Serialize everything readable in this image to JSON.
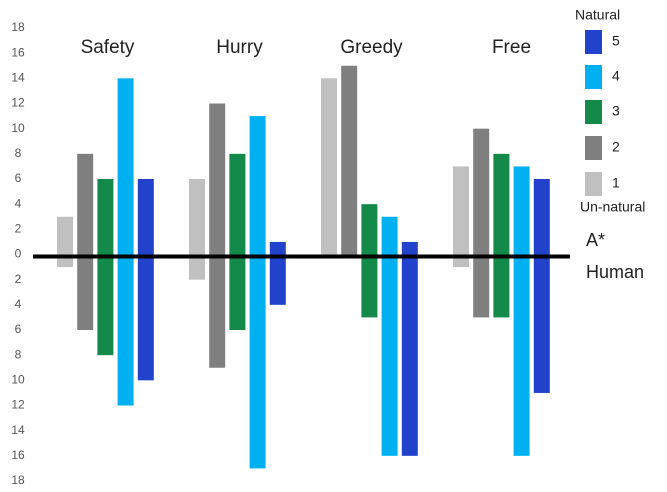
{
  "chart_data": {
    "type": "bar",
    "categories": [
      "Safety",
      "Hurry",
      "Greedy",
      "Free"
    ],
    "upper_label": "A*",
    "lower_label": "Human",
    "legend_top": "Natural",
    "legend_bottom": "Un-natural",
    "ylim": [
      -18,
      18
    ],
    "yticks": [
      18,
      16,
      14,
      12,
      10,
      8,
      6,
      4,
      2,
      0,
      {
        "value": -2,
        "label": "2"
      },
      {
        "value": -4,
        "label": "4"
      },
      {
        "value": -6,
        "label": "6"
      },
      {
        "value": -8,
        "label": "8"
      },
      {
        "value": -10,
        "label": "10"
      },
      {
        "value": -12,
        "label": "12"
      },
      {
        "value": -14,
        "label": "14"
      },
      {
        "value": -16,
        "label": "16"
      },
      {
        "value": -18,
        "label": "18"
      }
    ],
    "grid": false,
    "series": [
      {
        "name": "1",
        "color": "#c0c0c0",
        "values": [
          3,
          6,
          14,
          7
        ],
        "lower_values": [
          -1,
          -2,
          0,
          -1
        ]
      },
      {
        "name": "2",
        "color": "#7f7f7f",
        "values": [
          8,
          12,
          15,
          10
        ],
        "lower_values": [
          -6,
          -9,
          0,
          -5
        ]
      },
      {
        "name": "3",
        "color": "#13894a",
        "values": [
          6,
          8,
          4,
          8
        ],
        "lower_values": [
          -8,
          -6,
          -5,
          -5
        ]
      },
      {
        "name": "4",
        "color": "#00b0f0",
        "values": [
          14,
          11,
          3,
          7
        ],
        "lower_values": [
          -12,
          -17,
          -16,
          -16
        ]
      },
      {
        "name": "5",
        "color": "#2242cc",
        "values": [
          6,
          1,
          1,
          6
        ],
        "lower_values": [
          -10,
          -4,
          -16,
          -11
        ]
      }
    ]
  }
}
